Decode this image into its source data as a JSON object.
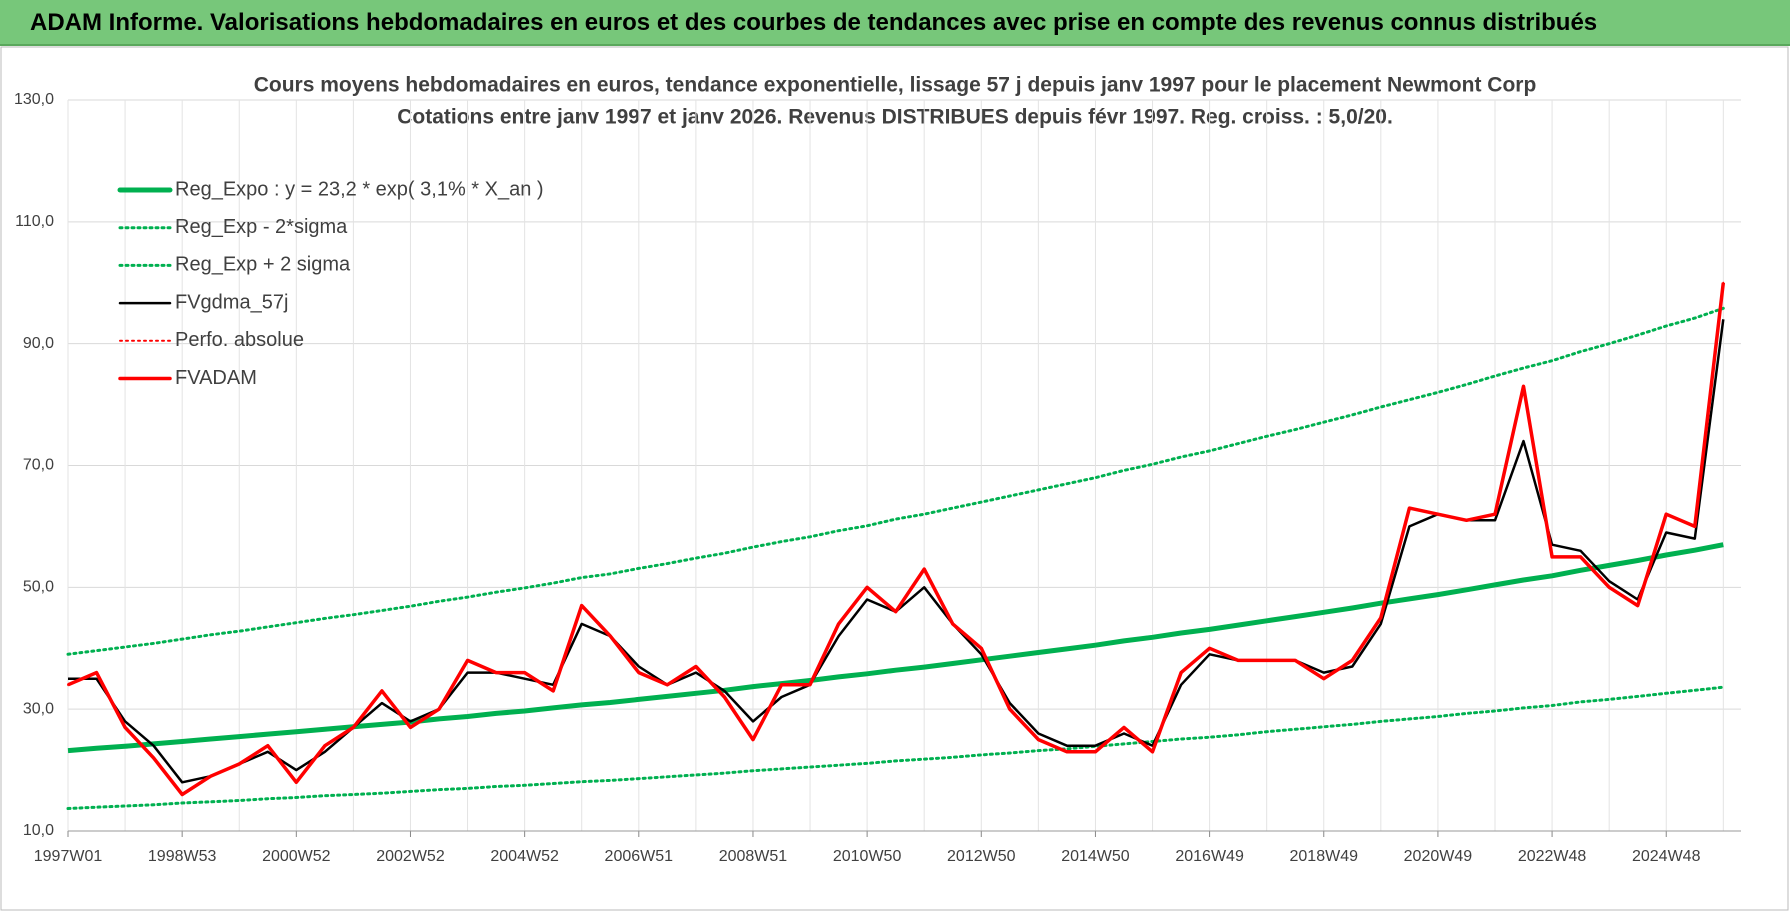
{
  "header": {
    "title": "ADAM Informe. Valorisations hebdomadaires en euros et des courbes de tendances avec prise en compte des revenus connus distribués"
  },
  "chart_data": {
    "type": "line",
    "title": "Cours moyens hebdomadaires en euros, tendance exponentielle, lissage 57 j depuis janv 1997  pour le placement Newmont Corp",
    "subtitle": "Cotations entre janv 1997 et janv 2026. Revenus DISTRIBUES depuis févr 1997. Reg. croiss. : 5,0/20.",
    "categories": [
      "1997W01",
      null,
      null,
      null,
      "1998W53",
      null,
      null,
      null,
      "2000W52",
      null,
      null,
      null,
      "2002W52",
      null,
      null,
      null,
      "2004W52",
      null,
      null,
      null,
      "2006W51",
      null,
      null,
      null,
      "2008W51",
      null,
      null,
      null,
      "2010W50",
      null,
      null,
      null,
      "2012W50",
      null,
      null,
      null,
      "2014W50",
      null,
      null,
      null,
      "2016W49",
      null,
      null,
      null,
      "2018W49",
      null,
      null,
      null,
      "2020W49",
      null,
      null,
      null,
      "2022W48",
      null,
      null,
      null,
      "2024W48",
      null,
      null
    ],
    "ylim": [
      10,
      130
    ],
    "yticks": [
      {
        "value": 10,
        "label": "10,0"
      },
      {
        "value": 30,
        "label": "30,0"
      },
      {
        "value": 50,
        "label": "50,0"
      },
      {
        "value": 70,
        "label": "70,0"
      },
      {
        "value": 90,
        "label": "90,0"
      },
      {
        "value": 110,
        "label": "110,0"
      },
      {
        "value": 130,
        "label": "130,0"
      }
    ],
    "grid": true,
    "legend": "upper left",
    "series": [
      {
        "name": "Reg_Expo : y = 23,2 * exp( 3,1% *  X_an )",
        "color": "#00b050",
        "style": "solid",
        "width": 5,
        "values": [
          23.2,
          23.6,
          23.9,
          24.3,
          24.7,
          25.1,
          25.5,
          25.9,
          26.3,
          26.7,
          27.1,
          27.5,
          27.9,
          28.4,
          28.8,
          29.3,
          29.7,
          30.2,
          30.7,
          31.1,
          31.6,
          32.1,
          32.6,
          33.1,
          33.7,
          34.2,
          34.7,
          35.3,
          35.8,
          36.4,
          36.9,
          37.5,
          38.1,
          38.7,
          39.3,
          39.9,
          40.5,
          41.2,
          41.8,
          42.5,
          43.1,
          43.8,
          44.5,
          45.2,
          45.9,
          46.6,
          47.4,
          48.1,
          48.8,
          49.6,
          50.4,
          51.2,
          51.9,
          52.8,
          53.6,
          54.4,
          55.3,
          56.1,
          57.0
        ]
      },
      {
        "name": "Reg_Exp - 2*sigma",
        "color": "#00b050",
        "style": "dotted",
        "width": 3,
        "values": [
          13.7,
          13.9,
          14.1,
          14.3,
          14.6,
          14.8,
          15.0,
          15.3,
          15.5,
          15.8,
          16.0,
          16.2,
          16.5,
          16.8,
          17.0,
          17.3,
          17.5,
          17.8,
          18.1,
          18.3,
          18.6,
          18.9,
          19.2,
          19.5,
          19.9,
          20.2,
          20.5,
          20.8,
          21.1,
          21.5,
          21.8,
          22.1,
          22.5,
          22.8,
          23.2,
          23.5,
          23.9,
          24.3,
          24.7,
          25.1,
          25.4,
          25.8,
          26.3,
          26.7,
          27.1,
          27.5,
          28.0,
          28.4,
          28.8,
          29.3,
          29.7,
          30.2,
          30.6,
          31.2,
          31.6,
          32.1,
          32.6,
          33.1,
          33.6
        ]
      },
      {
        "name": "Reg_Exp + 2 sigma",
        "color": "#00b050",
        "style": "dotted",
        "width": 3,
        "values": [
          39.0,
          39.6,
          40.2,
          40.8,
          41.5,
          42.2,
          42.8,
          43.5,
          44.2,
          44.9,
          45.5,
          46.2,
          46.9,
          47.7,
          48.4,
          49.2,
          49.9,
          50.7,
          51.6,
          52.2,
          53.1,
          53.9,
          54.8,
          55.6,
          56.6,
          57.5,
          58.3,
          59.3,
          60.1,
          61.2,
          62.0,
          63.0,
          64.0,
          65.0,
          66.0,
          67.0,
          68.0,
          69.2,
          70.2,
          71.4,
          72.4,
          73.6,
          74.8,
          75.9,
          77.1,
          78.3,
          79.6,
          80.8,
          82.0,
          83.3,
          84.7,
          86.0,
          87.2,
          88.7,
          90.0,
          91.4,
          92.9,
          94.2,
          95.8
        ]
      },
      {
        "name": "FVgdma_57j",
        "color": "#000000",
        "style": "solid",
        "width": 2.5,
        "values": [
          35,
          35,
          28,
          24,
          18,
          19,
          21,
          23,
          20,
          23,
          27,
          31,
          28,
          30,
          36,
          36,
          35,
          34,
          44,
          42,
          37,
          34,
          36,
          33,
          28,
          32,
          34,
          42,
          48,
          46,
          50,
          44,
          39,
          31,
          26,
          24,
          24,
          26,
          24,
          34,
          39,
          38,
          38,
          38,
          36,
          37,
          44,
          60,
          62,
          61,
          61,
          74,
          57,
          56,
          51,
          48,
          59,
          58,
          94
        ]
      },
      {
        "name": "Perfo. absolue",
        "color": "#ff0000",
        "style": "dotted",
        "width": 2,
        "values": [
          34,
          36,
          27,
          22,
          16,
          19,
          21,
          24,
          18,
          24,
          27,
          33,
          27,
          30,
          38,
          36,
          36,
          33,
          47,
          42,
          36,
          34,
          37,
          32,
          25,
          34,
          34,
          44,
          50,
          46,
          53,
          44,
          40,
          30,
          25,
          23,
          23,
          27,
          23,
          36,
          40,
          38,
          38,
          38,
          35,
          38,
          45,
          63,
          62,
          61,
          62,
          83,
          55,
          55,
          50,
          47,
          62,
          60,
          100
        ]
      },
      {
        "name": "FVADAM",
        "color": "#ff0000",
        "style": "solid",
        "width": 3.5,
        "values": [
          34,
          36,
          27,
          22,
          16,
          19,
          21,
          24,
          18,
          24,
          27,
          33,
          27,
          30,
          38,
          36,
          36,
          33,
          47,
          42,
          36,
          34,
          37,
          32,
          25,
          34,
          34,
          44,
          50,
          46,
          53,
          44,
          40,
          30,
          25,
          23,
          23,
          27,
          23,
          36,
          40,
          38,
          38,
          38,
          35,
          38,
          45,
          63,
          62,
          61,
          62,
          83,
          55,
          55,
          50,
          47,
          62,
          60,
          100
        ]
      }
    ]
  }
}
